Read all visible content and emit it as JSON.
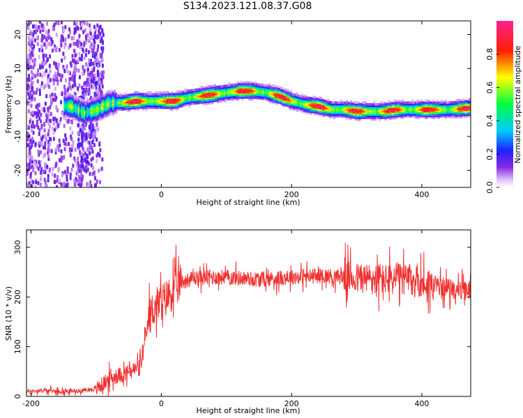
{
  "title": "S134.2023.121.08.37.G08",
  "chart_data": [
    {
      "type": "heatmap",
      "xlabel": "Height of straight line (km)",
      "ylabel": "Frequency (Hz)",
      "xlim": [
        -207,
        475
      ],
      "ylim": [
        -25,
        24
      ],
      "xticks": [
        -200,
        0,
        200,
        400
      ],
      "yticks": [
        20,
        10,
        0,
        -10,
        -20
      ],
      "colorbar": {
        "label": "Normalized spectral amplitude",
        "range": [
          0.0,
          1.0
        ],
        "ticks": [
          0.0,
          0.2,
          0.4,
          0.6,
          0.8
        ]
      },
      "ridge": {
        "x": [
          -140,
          -120,
          -100,
          -80,
          -60,
          -40,
          -20,
          0,
          20,
          40,
          60,
          80,
          100,
          120,
          140,
          160,
          180,
          200,
          220,
          240,
          260,
          280,
          300,
          320,
          340,
          360,
          380,
          400,
          420,
          440,
          475
        ],
        "freq": [
          -1,
          -3,
          -2,
          0,
          0,
          0.5,
          0.5,
          0.5,
          0.5,
          1.5,
          2,
          2.5,
          3,
          3.5,
          3.5,
          3,
          2,
          0.5,
          -0.5,
          -1,
          -2,
          -2,
          -2.5,
          -2.5,
          -2.5,
          -2,
          -2,
          -2,
          -2,
          -2,
          -1.5
        ]
      }
    },
    {
      "type": "line",
      "xlabel": "Height of straight line (km)",
      "ylabel": "SNR (10 * v/v)",
      "xlim": [
        -207,
        475
      ],
      "ylim": [
        0,
        335
      ],
      "xticks": [
        -200,
        0,
        200,
        400
      ],
      "yticks": [
        0,
        100,
        200,
        300
      ],
      "color": "#f03030",
      "series": [
        {
          "x": [
            -207,
            -180,
            -150,
            -120,
            -100,
            -90,
            -80,
            -70,
            -60,
            -50,
            -40,
            -30,
            -25,
            -20,
            -15,
            -10,
            0,
            10,
            20,
            30,
            50,
            80,
            100,
            150,
            200,
            250,
            280,
            300,
            350,
            380,
            400,
            450,
            475
          ],
          "values": [
            10,
            12,
            10,
            12,
            15,
            25,
            35,
            40,
            45,
            50,
            55,
            70,
            110,
            150,
            170,
            180,
            190,
            200,
            215,
            230,
            238,
            240,
            240,
            235,
            240,
            243,
            240,
            238,
            235,
            235,
            230,
            215,
            210
          ]
        }
      ]
    }
  ]
}
